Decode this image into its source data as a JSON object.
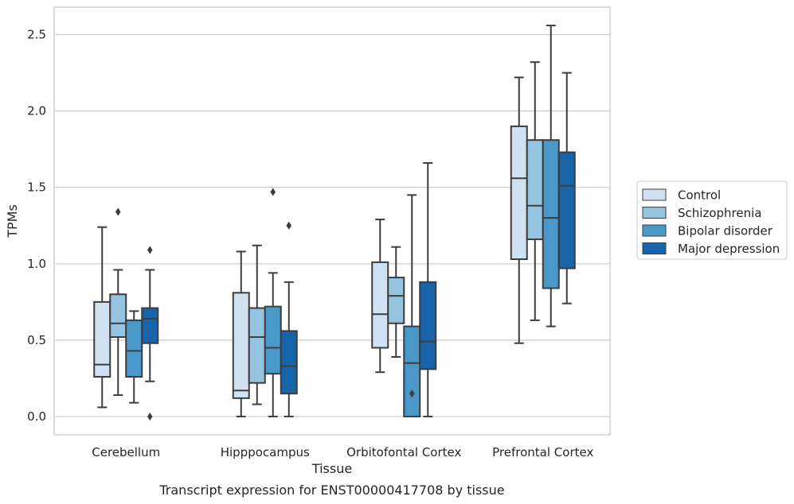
{
  "chart_data": {
    "type": "box",
    "caption": "Transcript expression for ENST00000417708 by tissue",
    "xlabel": "Tissue",
    "ylabel": "TPMs",
    "ylim": [
      -0.12,
      2.68
    ],
    "yticks": [
      0.0,
      0.5,
      1.0,
      1.5,
      2.0,
      2.5
    ],
    "ytick_labels": [
      "0.0",
      "0.5",
      "1.0",
      "1.5",
      "2.0",
      "2.5"
    ],
    "grid": "horizontal",
    "legend_position": "right",
    "categories": [
      "Cerebellum",
      "Hipppocampus",
      "Orbitofontal Cortex",
      "Prefrontal Cortex"
    ],
    "series": [
      {
        "name": "Control",
        "color": "#d0e1f2",
        "boxes": [
          {
            "whislo": 0.06,
            "q1": 0.26,
            "med": 0.34,
            "q3": 0.75,
            "whishi": 1.24,
            "fliers": []
          },
          {
            "whislo": 0.0,
            "q1": 0.12,
            "med": 0.17,
            "q3": 0.81,
            "whishi": 1.08,
            "fliers": []
          },
          {
            "whislo": 0.29,
            "q1": 0.45,
            "med": 0.67,
            "q3": 1.01,
            "whishi": 1.29,
            "fliers": []
          },
          {
            "whislo": 0.48,
            "q1": 1.03,
            "med": 1.56,
            "q3": 1.9,
            "whishi": 2.22,
            "fliers": []
          }
        ]
      },
      {
        "name": "Schizophrenia",
        "color": "#94c4df",
        "boxes": [
          {
            "whislo": 0.14,
            "q1": 0.52,
            "med": 0.61,
            "q3": 0.8,
            "whishi": 0.96,
            "fliers": [
              1.34
            ]
          },
          {
            "whislo": 0.08,
            "q1": 0.22,
            "med": 0.52,
            "q3": 0.71,
            "whishi": 1.12,
            "fliers": []
          },
          {
            "whislo": 0.39,
            "q1": 0.61,
            "med": 0.79,
            "q3": 0.91,
            "whishi": 1.11,
            "fliers": []
          },
          {
            "whislo": 0.63,
            "q1": 1.16,
            "med": 1.38,
            "q3": 1.81,
            "whishi": 2.32,
            "fliers": []
          }
        ]
      },
      {
        "name": "Bipolar disorder",
        "color": "#4a98c9",
        "boxes": [
          {
            "whislo": 0.09,
            "q1": 0.26,
            "med": 0.43,
            "q3": 0.63,
            "whishi": 0.69,
            "fliers": []
          },
          {
            "whislo": 0.0,
            "q1": 0.28,
            "med": 0.45,
            "q3": 0.72,
            "whishi": 0.94,
            "fliers": [
              1.47
            ]
          },
          {
            "whislo": 0.0,
            "q1": 0.0,
            "med": 0.35,
            "q3": 0.59,
            "whishi": 1.45,
            "fliers": [
              0.15
            ]
          },
          {
            "whislo": 0.59,
            "q1": 0.84,
            "med": 1.3,
            "q3": 1.81,
            "whishi": 2.56,
            "fliers": []
          }
        ]
      },
      {
        "name": "Major depression",
        "color": "#1764ab",
        "boxes": [
          {
            "whislo": 0.23,
            "q1": 0.48,
            "med": 0.64,
            "q3": 0.71,
            "whishi": 0.96,
            "fliers": [
              1.09,
              0.0
            ]
          },
          {
            "whislo": 0.0,
            "q1": 0.15,
            "med": 0.33,
            "q3": 0.56,
            "whishi": 0.88,
            "fliers": [
              1.25
            ]
          },
          {
            "whislo": 0.0,
            "q1": 0.31,
            "med": 0.49,
            "q3": 0.88,
            "whishi": 1.66,
            "fliers": []
          },
          {
            "whislo": 0.74,
            "q1": 0.97,
            "med": 1.51,
            "q3": 1.73,
            "whishi": 2.25,
            "fliers": []
          }
        ]
      }
    ]
  }
}
